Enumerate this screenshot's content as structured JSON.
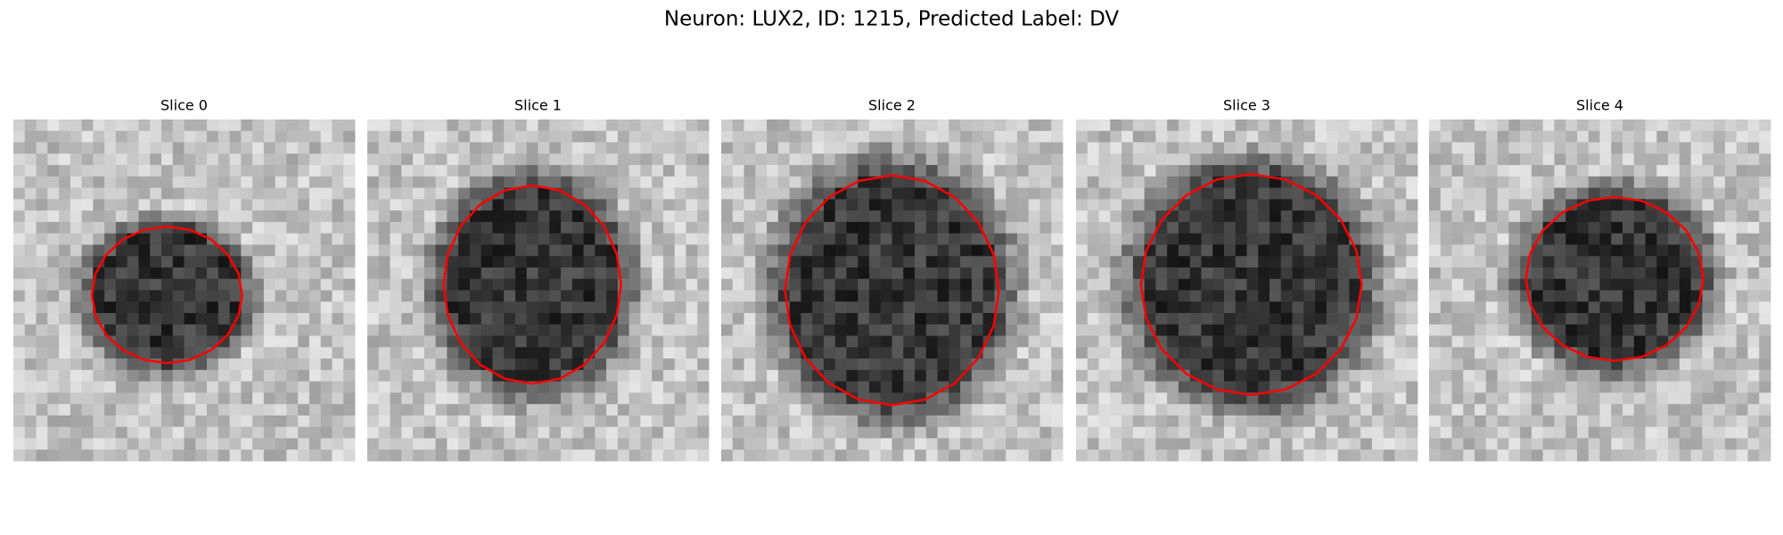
{
  "title": "Neuron: LUX2, ID: 1215, Predicted Label: DV",
  "panels": [
    {
      "title": "Slice 0"
    },
    {
      "title": "Slice 1"
    },
    {
      "title": "Slice 2"
    },
    {
      "title": "Slice 3"
    },
    {
      "title": "Slice 4"
    }
  ]
}
